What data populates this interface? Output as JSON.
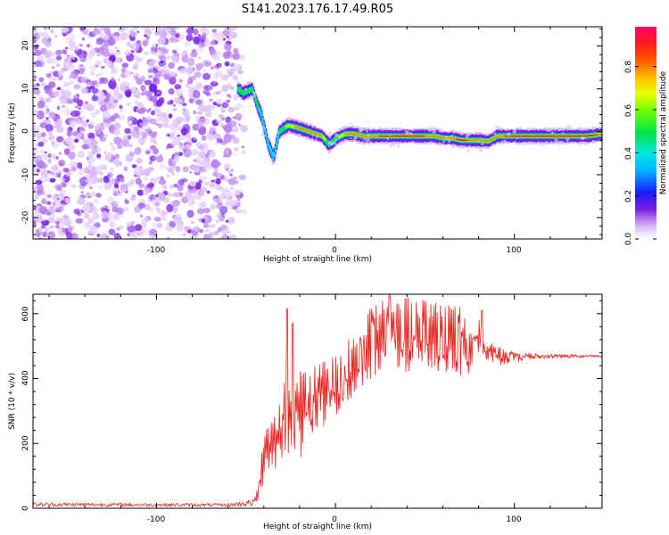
{
  "title": "S141.2023.176.17.49.R05",
  "colors": {
    "snr_line": "#e8201b",
    "speckle_light": "#d9b8f5",
    "speckle_dark": "#7b1fe0",
    "axes": "#000000"
  },
  "chart_data": [
    {
      "type": "heatmap",
      "title": "S141.2023.176.17.49.R05",
      "xlabel": "Height of straight line (km)",
      "ylabel": "Frequency (Hz)",
      "xlim": [
        -169,
        149
      ],
      "ylim": [
        -25,
        24.5
      ],
      "xticks": [
        -100,
        0,
        100
      ],
      "xtick_labels": [
        "-100",
        "0",
        "100"
      ],
      "yticks": [
        -20,
        -10,
        0,
        10,
        20
      ],
      "ytick_labels": [
        "-20",
        "-10",
        "0",
        "10",
        "20"
      ],
      "noise_region_x": [
        -169,
        -55
      ],
      "ridge": {
        "description_points_x": [
          -55,
          -52,
          -47,
          -44,
          -42,
          -38,
          -35,
          -32,
          -27,
          -22,
          -15,
          -8,
          -4,
          0,
          5,
          10,
          15,
          20,
          30,
          40,
          55,
          60,
          65,
          70,
          75,
          80,
          85,
          90,
          100,
          120,
          140,
          149
        ],
        "description_points_y": [
          10,
          9,
          10,
          6,
          4,
          -3,
          -6,
          0,
          1.5,
          1,
          0,
          -1,
          -3,
          -1.5,
          -0.5,
          -0.5,
          -1,
          -1,
          -1,
          -1,
          -1,
          -1.5,
          -1.5,
          -2,
          -2,
          -2,
          -2.2,
          -1,
          -1,
          -1,
          -1,
          -0.5
        ],
        "peak_intensity": [
          0.5,
          0.5,
          0.55,
          0.5,
          0.45,
          0.45,
          0.45,
          0.5,
          0.7,
          0.85,
          0.85,
          0.8,
          0.5,
          0.6,
          0.8,
          0.8,
          0.8,
          0.9,
          0.95,
          0.95,
          0.9,
          0.9,
          0.9,
          0.95,
          0.9,
          0.9,
          0.9,
          0.9,
          0.95,
          0.95,
          0.95,
          0.9
        ]
      }
    },
    {
      "type": "line",
      "xlabel": "Height of straight line (km)",
      "ylabel": "SNR (10 * v/v)",
      "xlim": [
        -169,
        149
      ],
      "ylim": [
        0,
        660
      ],
      "xticks": [
        -100,
        0,
        100
      ],
      "xtick_labels": [
        "-100",
        "0",
        "100"
      ],
      "yticks": [
        0,
        200,
        400,
        600
      ],
      "ytick_labels": [
        "0",
        "200",
        "400",
        "600"
      ],
      "envelope_x": [
        -169,
        -60,
        -45,
        -42,
        -38,
        -32,
        -28,
        -24,
        -20,
        -15,
        -10,
        -5,
        0,
        5,
        10,
        15,
        20,
        25,
        30,
        40,
        50,
        60,
        70,
        75,
        78,
        80,
        84,
        90,
        100,
        110,
        120,
        130,
        140,
        149
      ],
      "envelope_low": [
        5,
        5,
        5,
        40,
        120,
        120,
        150,
        200,
        150,
        200,
        240,
        260,
        280,
        300,
        350,
        380,
        400,
        410,
        420,
        420,
        430,
        420,
        410,
        410,
        500,
        480,
        460,
        440,
        450,
        460,
        462,
        463,
        465,
        465
      ],
      "envelope_high": [
        18,
        15,
        30,
        150,
        260,
        300,
        400,
        330,
        420,
        430,
        440,
        460,
        470,
        510,
        550,
        580,
        620,
        640,
        650,
        650,
        640,
        630,
        620,
        540,
        540,
        590,
        520,
        500,
        480,
        478,
        476,
        475,
        473,
        472
      ],
      "spike_peaks": [
        {
          "x": -27,
          "y": 615
        },
        {
          "x": -24,
          "y": 570
        },
        {
          "x": 30,
          "y": 660
        },
        {
          "x": 82,
          "y": 610
        }
      ]
    }
  ]
}
